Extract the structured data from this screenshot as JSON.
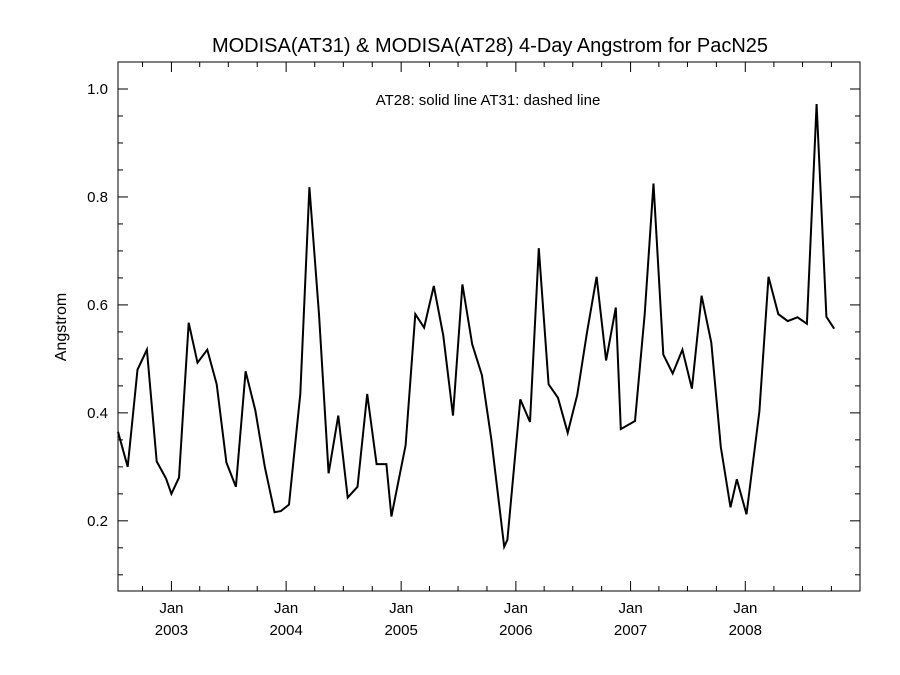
{
  "chart_data": {
    "type": "line",
    "title": "MODISA(AT31) & MODISA(AT28) 4-Day Angstrom for PacN25",
    "annotation": "AT28: solid line   AT31: dashed line",
    "ylabel": "Angstrom",
    "xlabel": "",
    "xlim": [
      "2002-07-15",
      "2008-12-31"
    ],
    "ylim": [
      0.07,
      1.05
    ],
    "y_ticks": [
      0.2,
      0.4,
      0.6,
      0.8,
      1.0
    ],
    "y_tick_labels": [
      "0.2",
      "0.4",
      "0.6",
      "0.8",
      "1.0"
    ],
    "x_ticks": [
      {
        "date": "2003-01-01",
        "month": "Jan",
        "year": "2003"
      },
      {
        "date": "2004-01-01",
        "month": "Jan",
        "year": "2004"
      },
      {
        "date": "2005-01-01",
        "month": "Jan",
        "year": "2005"
      },
      {
        "date": "2006-01-01",
        "month": "Jan",
        "year": "2006"
      },
      {
        "date": "2007-01-01",
        "month": "Jan",
        "year": "2007"
      },
      {
        "date": "2008-01-01",
        "month": "Jan",
        "year": "2008"
      }
    ],
    "grid": false,
    "series": [
      {
        "name": "AT28",
        "style": "solid",
        "color": "#000000",
        "points": [
          [
            "2002-07-15",
            0.365
          ],
          [
            "2002-08-15",
            0.3
          ],
          [
            "2002-09-15",
            0.48
          ],
          [
            "2002-10-15",
            0.517
          ],
          [
            "2002-11-15",
            0.31
          ],
          [
            "2002-12-15",
            0.278
          ],
          [
            "2003-01-01",
            0.25
          ],
          [
            "2003-01-25",
            0.28
          ],
          [
            "2003-02-25",
            0.567
          ],
          [
            "2003-03-25",
            0.493
          ],
          [
            "2003-04-25",
            0.517
          ],
          [
            "2003-05-25",
            0.453
          ],
          [
            "2003-06-25",
            0.308
          ],
          [
            "2003-07-25",
            0.263
          ],
          [
            "2003-08-25",
            0.477
          ],
          [
            "2003-09-25",
            0.405
          ],
          [
            "2003-10-25",
            0.3
          ],
          [
            "2003-11-25",
            0.216
          ],
          [
            "2003-12-15",
            0.218
          ],
          [
            "2004-01-10",
            0.23
          ],
          [
            "2004-02-15",
            0.435
          ],
          [
            "2004-03-15",
            0.818
          ],
          [
            "2004-04-15",
            0.58
          ],
          [
            "2004-05-15",
            0.288
          ],
          [
            "2004-06-15",
            0.395
          ],
          [
            "2004-07-15",
            0.243
          ],
          [
            "2004-08-15",
            0.263
          ],
          [
            "2004-09-15",
            0.435
          ],
          [
            "2004-10-15",
            0.305
          ],
          [
            "2004-11-15",
            0.305
          ],
          [
            "2004-12-01",
            0.208
          ],
          [
            "2005-01-15",
            0.34
          ],
          [
            "2005-02-15",
            0.583
          ],
          [
            "2005-03-15",
            0.558
          ],
          [
            "2005-04-15",
            0.635
          ],
          [
            "2005-05-15",
            0.543
          ],
          [
            "2005-06-15",
            0.395
          ],
          [
            "2005-07-15",
            0.638
          ],
          [
            "2005-08-15",
            0.527
          ],
          [
            "2005-09-15",
            0.47
          ],
          [
            "2005-10-15",
            0.35
          ],
          [
            "2005-11-25",
            0.152
          ],
          [
            "2005-12-05",
            0.165
          ],
          [
            "2006-01-15",
            0.425
          ],
          [
            "2006-02-15",
            0.383
          ],
          [
            "2006-03-15",
            0.705
          ],
          [
            "2006-04-15",
            0.453
          ],
          [
            "2006-05-15",
            0.428
          ],
          [
            "2006-06-15",
            0.363
          ],
          [
            "2006-07-15",
            0.433
          ],
          [
            "2006-08-15",
            0.548
          ],
          [
            "2006-09-15",
            0.652
          ],
          [
            "2006-10-15",
            0.497
          ],
          [
            "2006-11-15",
            0.595
          ],
          [
            "2006-12-01",
            0.37
          ],
          [
            "2007-01-15",
            0.385
          ],
          [
            "2007-02-15",
            0.583
          ],
          [
            "2007-03-15",
            0.825
          ],
          [
            "2007-04-15",
            0.508
          ],
          [
            "2007-05-15",
            0.473
          ],
          [
            "2007-06-15",
            0.517
          ],
          [
            "2007-07-15",
            0.445
          ],
          [
            "2007-08-15",
            0.617
          ],
          [
            "2007-09-15",
            0.53
          ],
          [
            "2007-10-15",
            0.337
          ],
          [
            "2007-11-15",
            0.225
          ],
          [
            "2007-12-05",
            0.277
          ],
          [
            "2008-01-05",
            0.212
          ],
          [
            "2008-02-15",
            0.403
          ],
          [
            "2008-03-15",
            0.652
          ],
          [
            "2008-04-15",
            0.583
          ],
          [
            "2008-05-15",
            0.57
          ],
          [
            "2008-06-15",
            0.577
          ],
          [
            "2008-07-15",
            0.565
          ],
          [
            "2008-08-15",
            0.972
          ],
          [
            "2008-09-15",
            0.578
          ],
          [
            "2008-10-10",
            0.556
          ]
        ]
      }
    ]
  }
}
